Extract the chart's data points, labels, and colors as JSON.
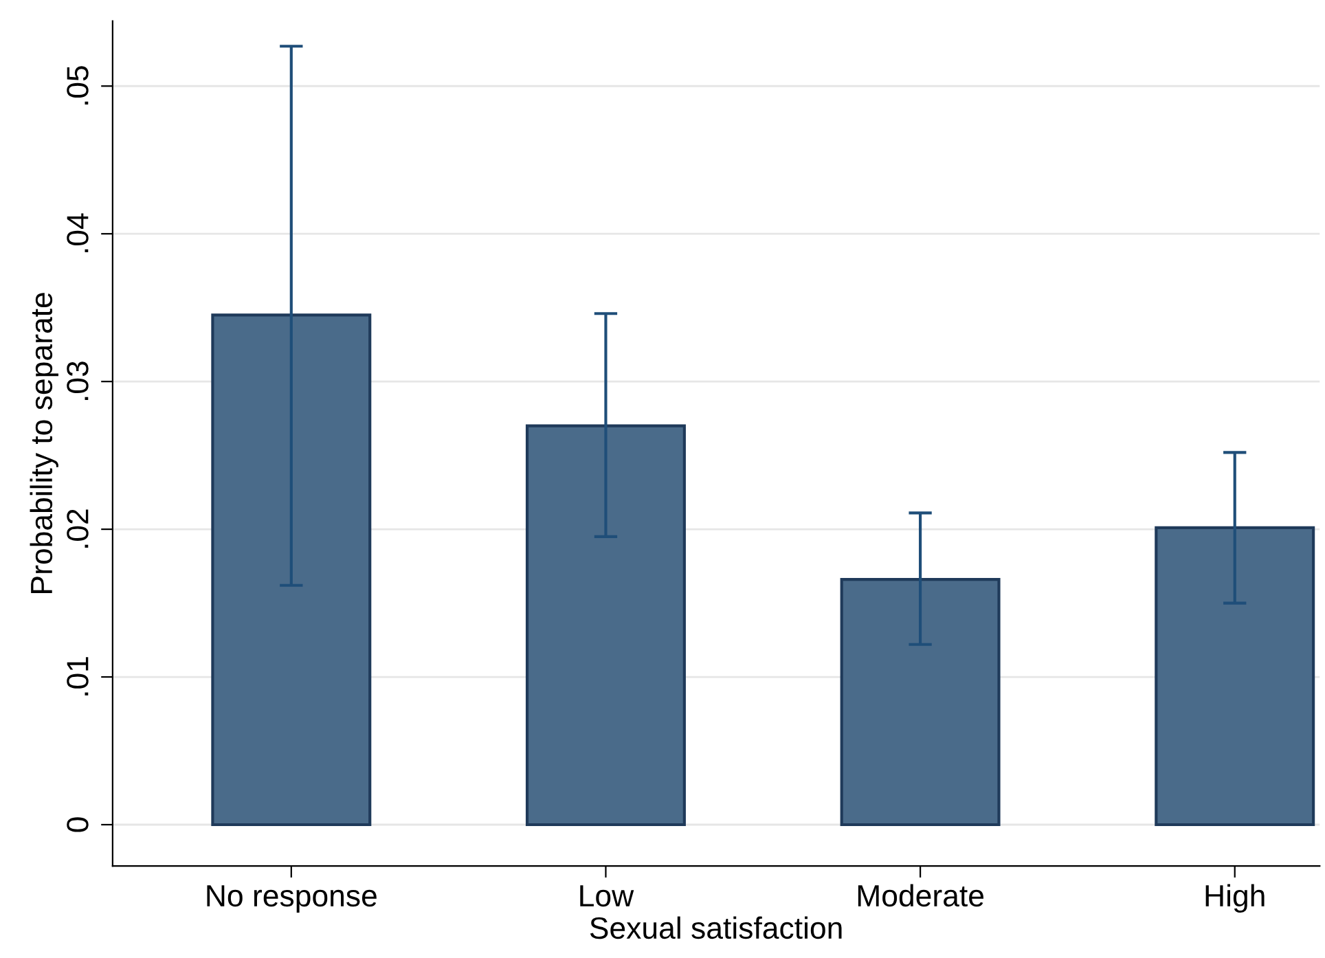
{
  "chart_data": {
    "type": "bar",
    "xlabel": "Sexual satisfaction",
    "ylabel": "Probability to separate",
    "categories": [
      "No response",
      "Low",
      "Moderate",
      "High"
    ],
    "values": [
      0.0345,
      0.027,
      0.0166,
      0.0201
    ],
    "errors": [
      [
        0.0162,
        0.0527
      ],
      [
        0.0195,
        0.0346
      ],
      [
        0.0122,
        0.0211
      ],
      [
        0.015,
        0.0252
      ]
    ],
    "color": "#4a6b8a",
    "ylim": [
      -0.0028,
      0.0544
    ],
    "yticks": [
      {
        "value": 0,
        "label": "0"
      },
      {
        "value": 0.01,
        "label": ".01"
      },
      {
        "value": 0.02,
        "label": ".02"
      },
      {
        "value": 0.03,
        "label": ".03"
      },
      {
        "value": 0.04,
        "label": ".04"
      },
      {
        "value": 0.05,
        "label": ".05"
      }
    ],
    "grid": "y"
  }
}
